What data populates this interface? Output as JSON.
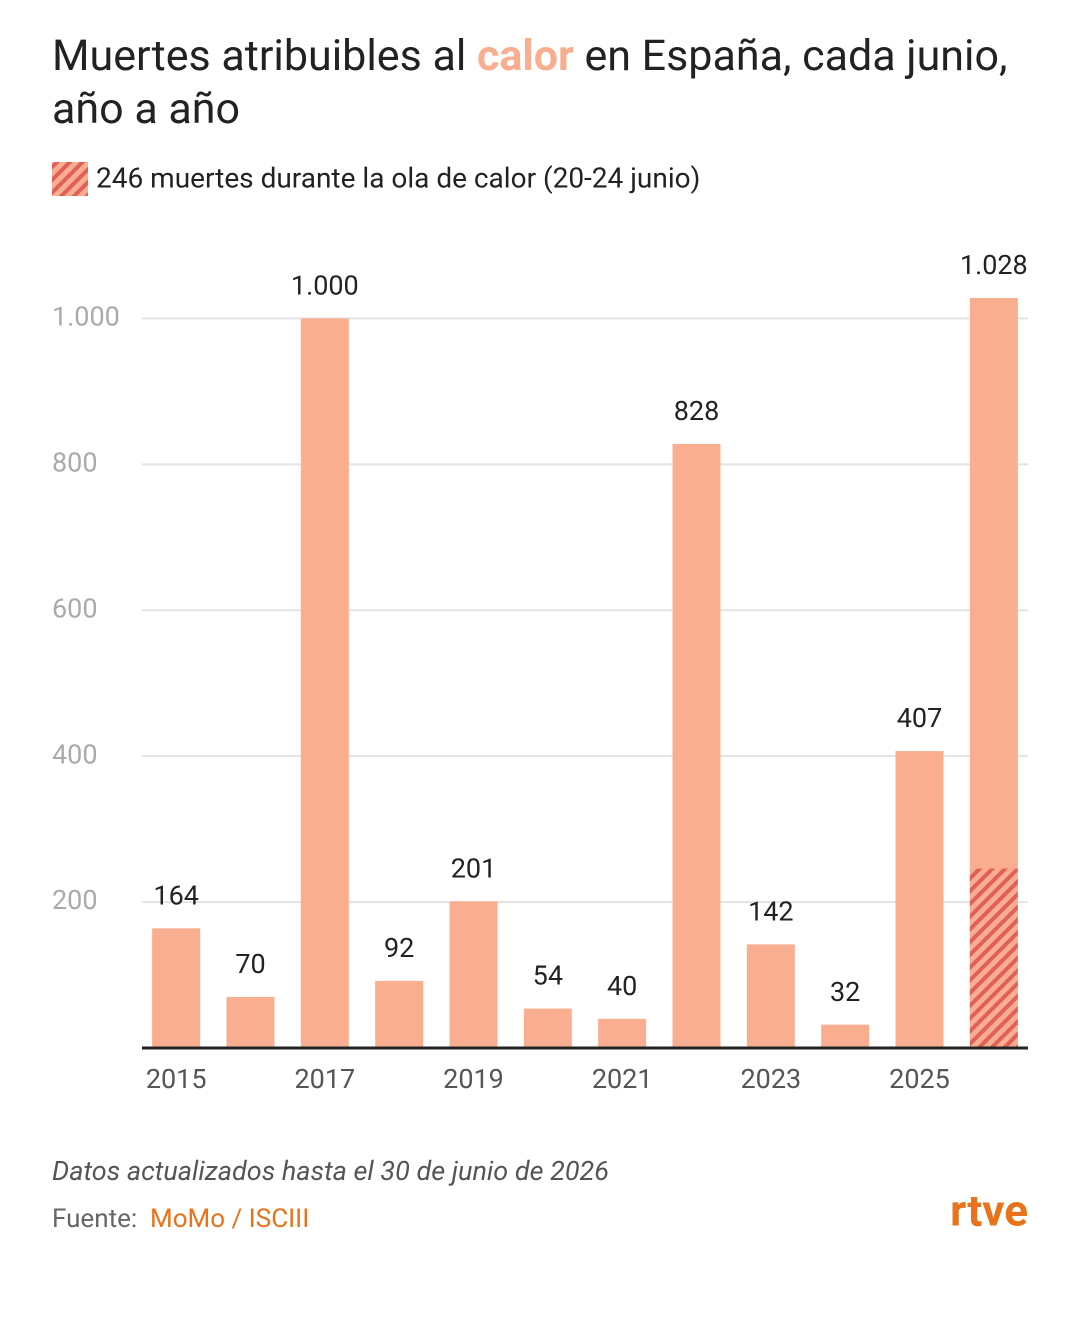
{
  "chart_data": {
    "type": "bar",
    "title_parts": [
      "Muertes atribuibles al ",
      "calor",
      " en España, cada junio, año a año"
    ],
    "highlight": {
      "label": "246 muertes durante la ola de calor (20-24 junio)",
      "value": 246,
      "color": "#e0605a"
    },
    "categories": [
      "2015",
      null,
      "2017",
      null,
      "2019",
      null,
      "2021",
      null,
      "2023",
      null,
      "2025",
      null
    ],
    "values": [
      164,
      70,
      1000,
      92,
      201,
      54,
      40,
      828,
      142,
      32,
      407,
      1028
    ],
    "value_labels": [
      "164",
      "70",
      "1.000",
      "92",
      "201",
      "54",
      "40",
      "828",
      "142",
      "32",
      "407",
      "1.028"
    ],
    "color": "#f9ae90",
    "ylim": [
      0,
      1028
    ],
    "yticks": [
      200,
      400,
      600,
      800,
      {
        "value": 1000,
        "label": "1.000"
      }
    ],
    "grid": true,
    "note": "Datos actualizados hasta el 30 de junio de 2026",
    "source_label": "Fuente:",
    "source": "MoMo / ISCIII",
    "logo": "rtve"
  }
}
